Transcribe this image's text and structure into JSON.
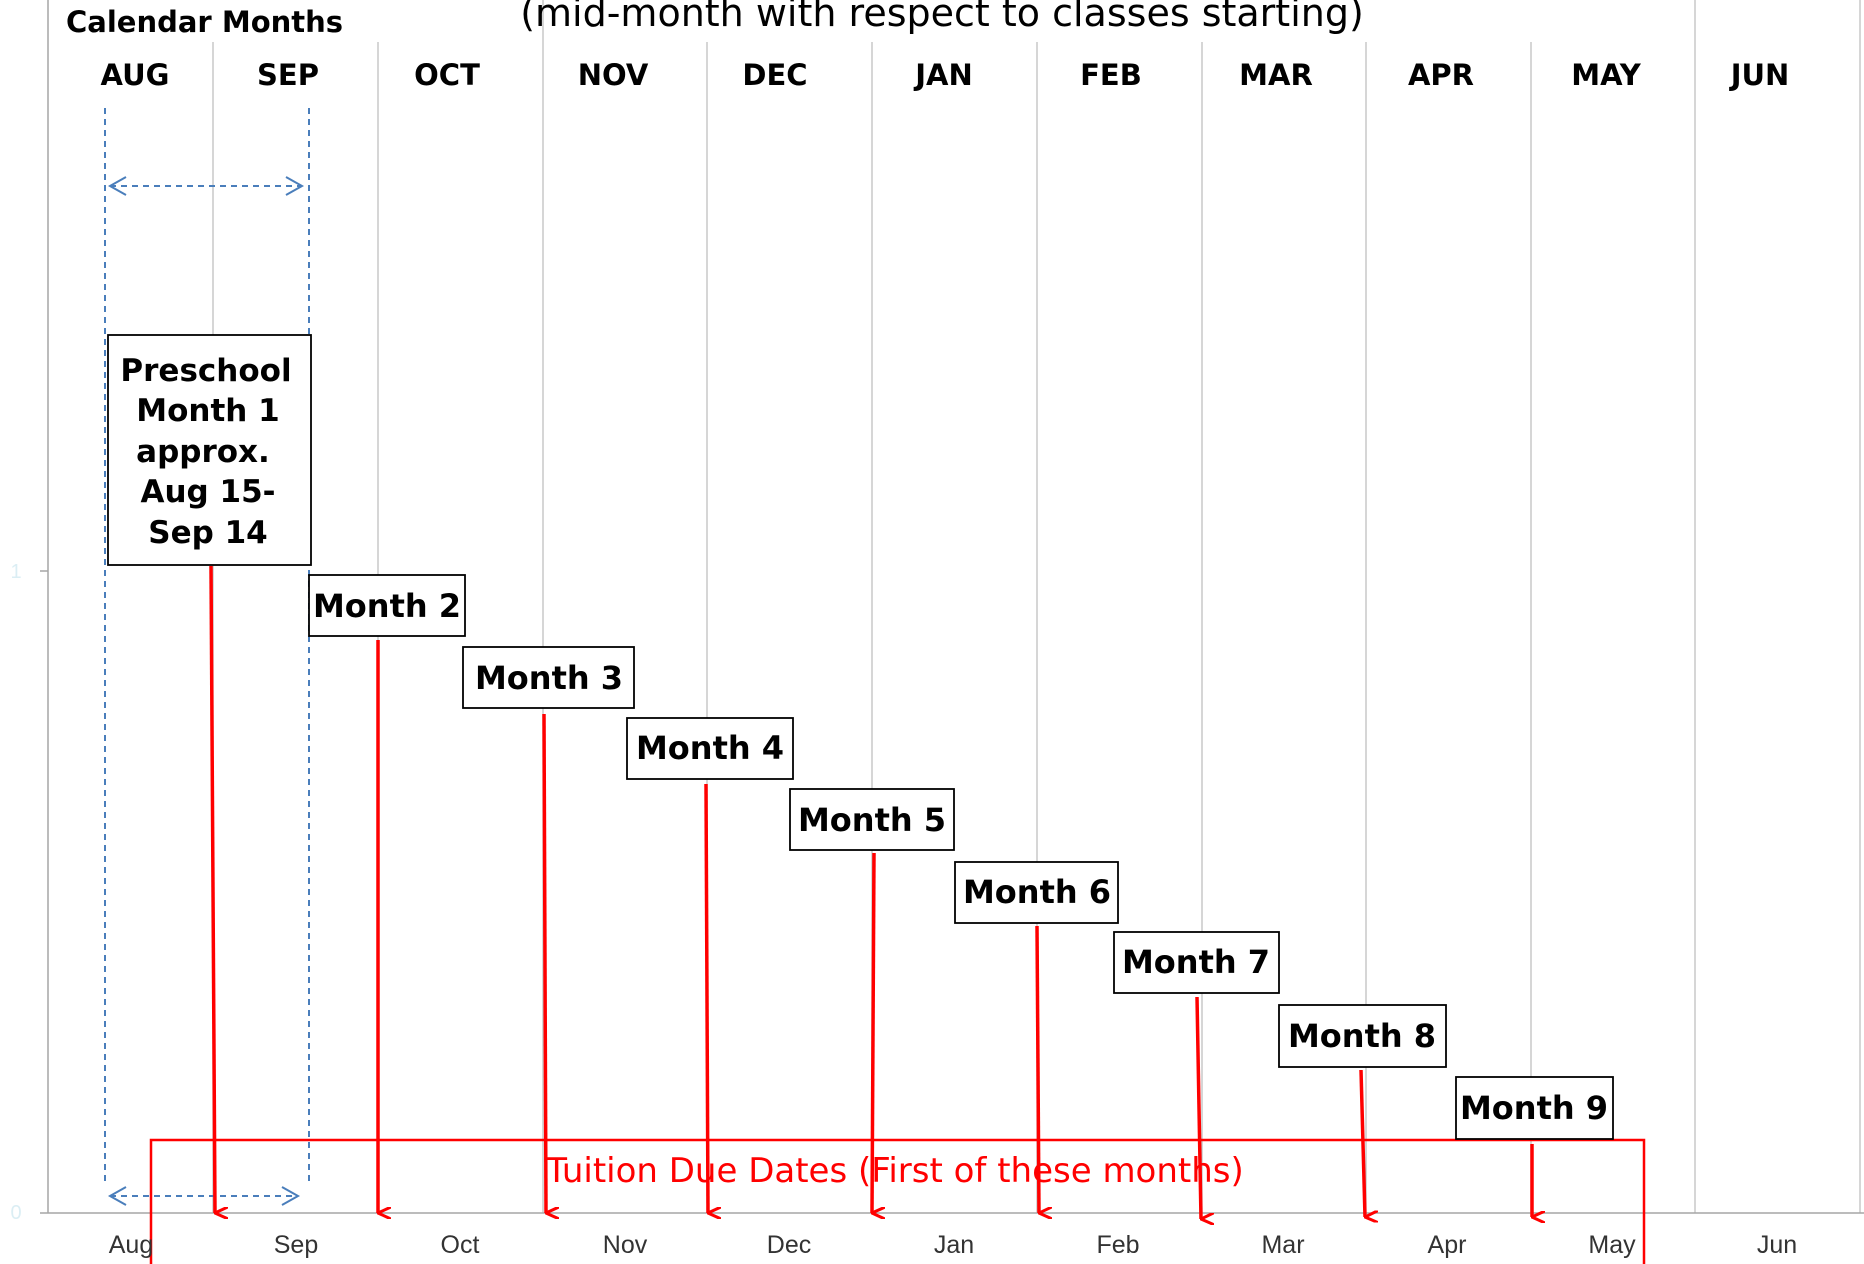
{
  "header": {
    "calendar_label": "Calendar Months",
    "title_partial": "(mid-month with respect to classes starting)"
  },
  "calendar_months": [
    "AUG",
    "SEP",
    "OCT",
    "NOV",
    "DEC",
    "JAN",
    "FEB",
    "MAR",
    "APR",
    "MAY",
    "JUN"
  ],
  "axis": {
    "x_ticks": [
      "Aug",
      "Sep",
      "Oct",
      "Nov",
      "Dec",
      "Jan",
      "Feb",
      "Mar",
      "Apr",
      "May",
      "Jun"
    ],
    "y_ticks": [
      "1",
      "0"
    ]
  },
  "preschool_month_1": {
    "lines": [
      "Preschool",
      "Month 1",
      "approx.",
      "Aug 15-",
      "Sep 14"
    ]
  },
  "months": [
    {
      "label": "Month 2",
      "arrow_month": "Oct"
    },
    {
      "label": "Month 3",
      "arrow_month": "Nov"
    },
    {
      "label": "Month 4",
      "arrow_month": "Dec"
    },
    {
      "label": "Month 5",
      "arrow_month": "Jan"
    },
    {
      "label": "Month 6",
      "arrow_month": "Feb"
    },
    {
      "label": "Month 7",
      "arrow_month": "Mar"
    },
    {
      "label": "Month 8",
      "arrow_month": "Apr"
    },
    {
      "label": "Month 9",
      "arrow_month": "May"
    }
  ],
  "tuition_box": {
    "label": "Tuition Due Dates (First of these months)"
  },
  "colors": {
    "red": "#ff0000",
    "blue_dashed": "#4a7ebb",
    "grid": "#c0c0c0",
    "axis": "#a6a6a6",
    "faint_tick": "#dbeef4",
    "text": "#000000"
  }
}
